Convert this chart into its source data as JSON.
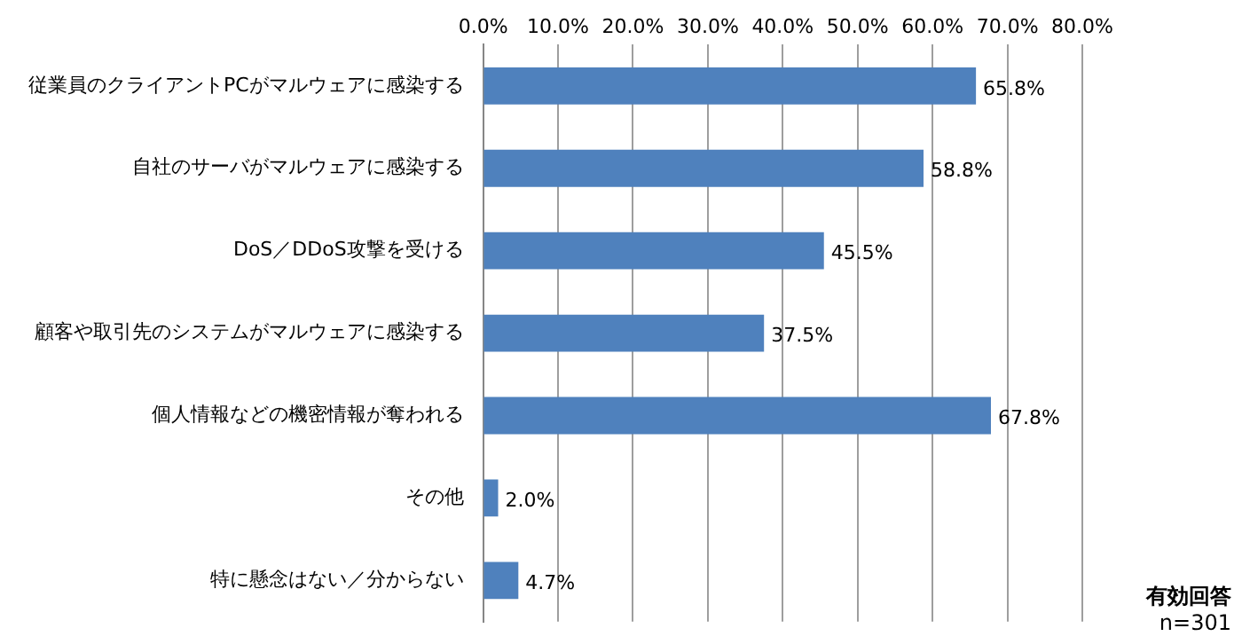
{
  "chart_data": {
    "type": "bar",
    "orientation": "horizontal",
    "categories": [
      "従業員のクライアントPCがマルウェアに感染する",
      "自社のサーバがマルウェアに感染する",
      "DoS／DDoS攻撃を受ける",
      "顧客や取引先のシステムがマルウェアに感染する",
      "個人情報などの機密情報が奪われる",
      "その他",
      "特に懸念はない／分からない"
    ],
    "values": [
      65.8,
      58.8,
      45.5,
      37.5,
      67.8,
      2.0,
      4.7
    ],
    "value_labels": [
      "65.8%",
      "58.8%",
      "45.5%",
      "37.5%",
      "67.8%",
      "2.0%",
      "4.7%"
    ],
    "color": "#4f81bd",
    "xlim": [
      0,
      80
    ],
    "xticks": [
      {
        "value": 0,
        "label": "0.0%"
      },
      {
        "value": 10,
        "label": "10.0%"
      },
      {
        "value": 20,
        "label": "20.0%"
      },
      {
        "value": 30,
        "label": "30.0%"
      },
      {
        "value": 40,
        "label": "40.0%"
      },
      {
        "value": 50,
        "label": "50.0%"
      },
      {
        "value": 60,
        "label": "60.0%"
      },
      {
        "value": 70,
        "label": "70.0%"
      },
      {
        "value": 80,
        "label": "80.0%"
      }
    ],
    "grid": "x",
    "annotations": [
      "有効回答",
      "n=301"
    ]
  }
}
